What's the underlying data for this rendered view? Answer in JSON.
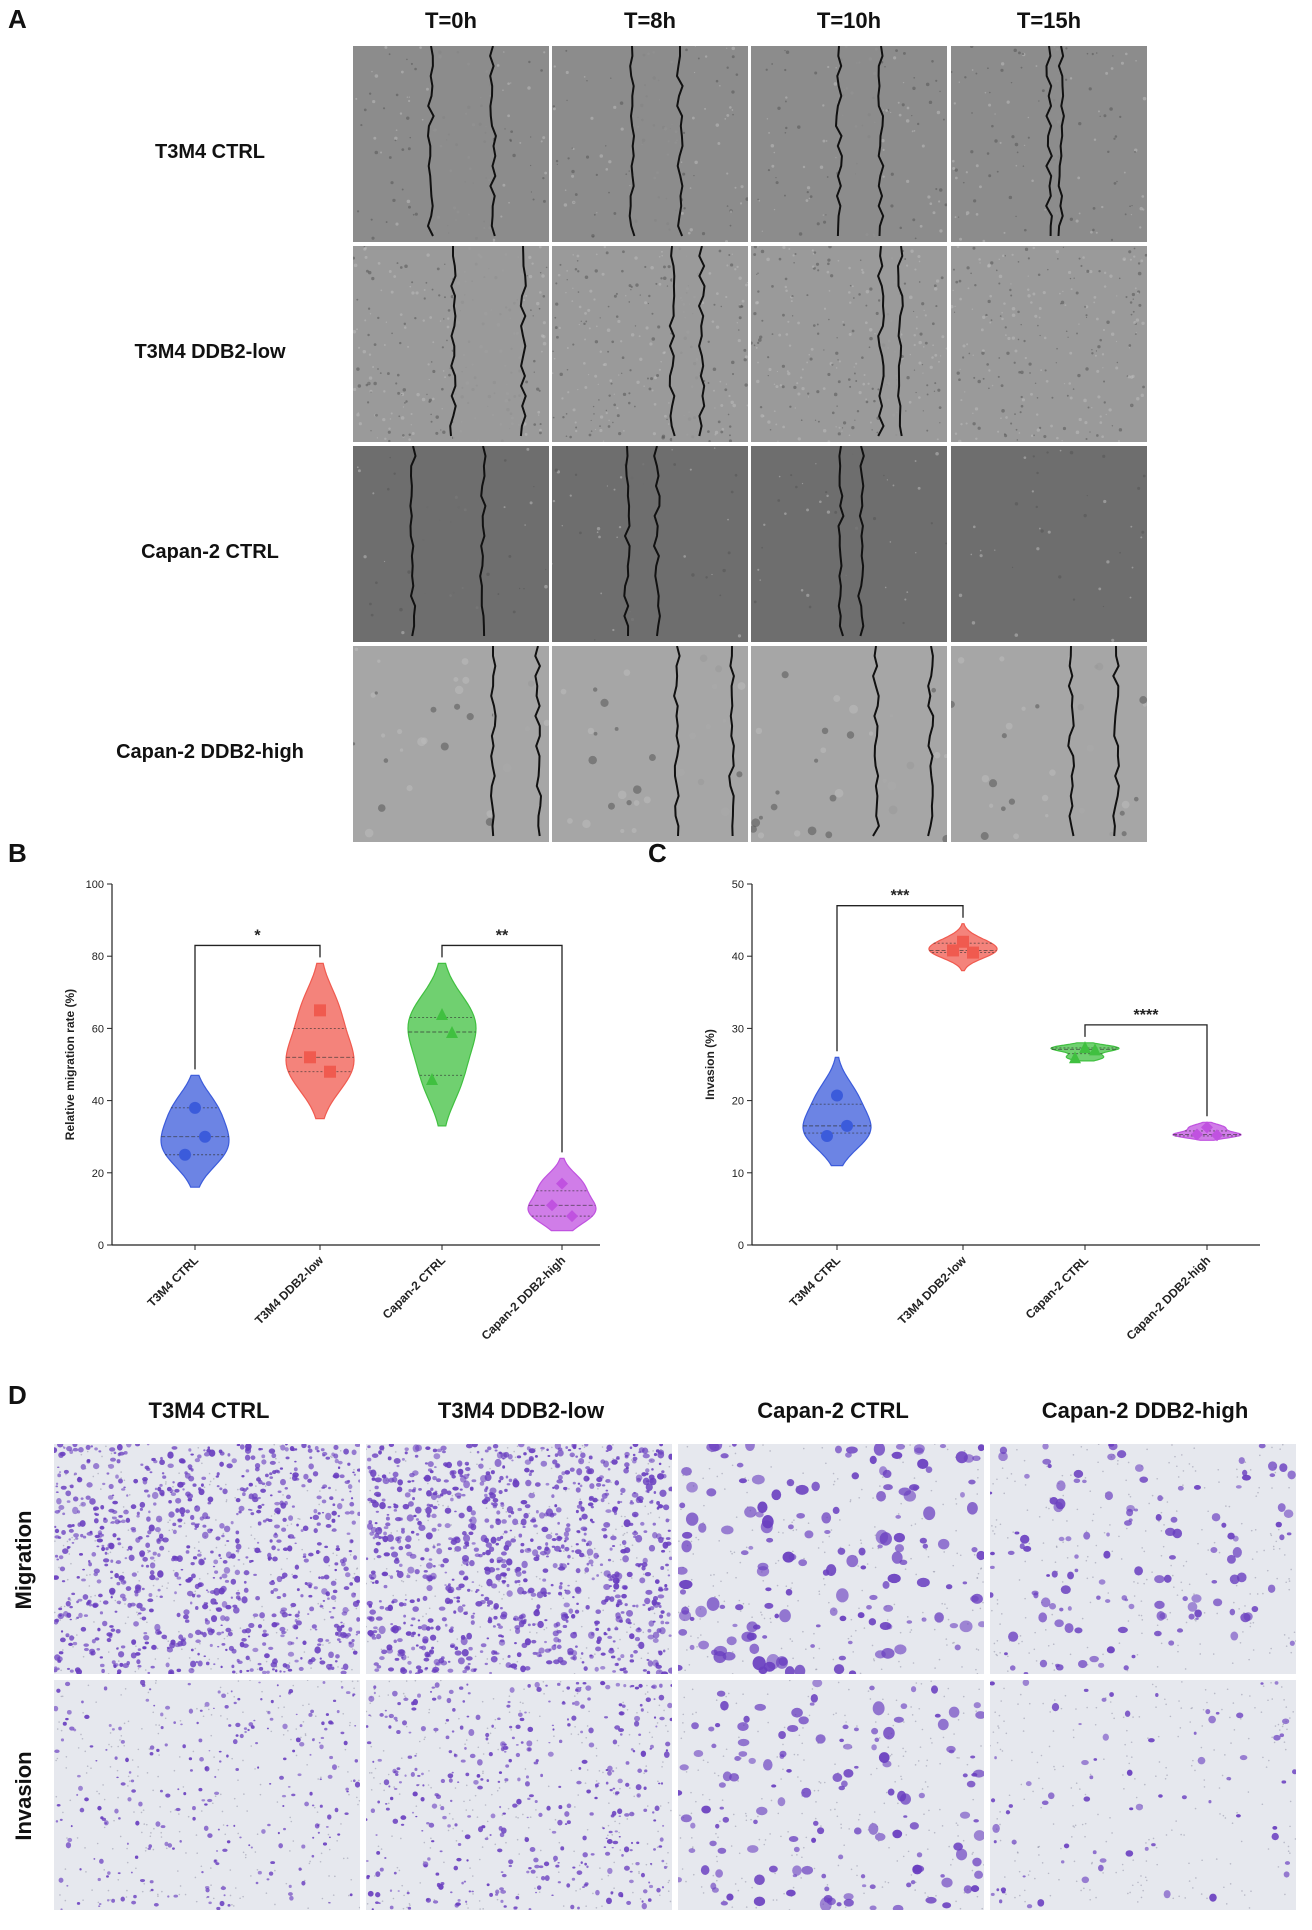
{
  "panelA": {
    "letter": "A",
    "times": [
      "T=0h",
      "T=8h",
      "T=10h",
      "T=15h"
    ],
    "rows": [
      {
        "label": "T3M4 CTRL",
        "tone": "#8c8c8c",
        "texture": "fine"
      },
      {
        "label": "T3M4 DDB2-low",
        "tone": "#9a9a9a",
        "texture": "grainy"
      },
      {
        "label": "Capan-2 CTRL",
        "tone": "#6e6e6e",
        "texture": "smooth"
      },
      {
        "label": "Capan-2 DDB2-high",
        "tone": "#a6a6a6",
        "texture": "spotty"
      }
    ],
    "gap_closed": [
      [
        false,
        false,
        false,
        false
      ],
      [
        false,
        false,
        false,
        true
      ],
      [
        false,
        false,
        false,
        true
      ],
      [
        false,
        false,
        false,
        false
      ]
    ]
  },
  "panelB": {
    "letter": "B"
  },
  "panelC": {
    "letter": "C"
  },
  "chart_data": [
    {
      "type": "violin",
      "ylabel": "Relative migration rate (%)",
      "xlabel": "",
      "ylim": [
        0,
        100
      ],
      "yticks": [
        0,
        20,
        40,
        60,
        80,
        100
      ],
      "categories": [
        "T3M4 CTRL",
        "T3M4 DDB2-low",
        "Capan-2 CTRL",
        "Capan-2 DDB2-high"
      ],
      "colors": [
        "#3b5bdb",
        "#f05a4f",
        "#40c040",
        "#c052e0"
      ],
      "markers": [
        "circle",
        "square",
        "triangle",
        "diamond"
      ],
      "points": [
        [
          38,
          30,
          25
        ],
        [
          65,
          52,
          48
        ],
        [
          64,
          59,
          46
        ],
        [
          17,
          11,
          8
        ]
      ],
      "violin_range": [
        [
          16,
          47
        ],
        [
          35,
          78
        ],
        [
          33,
          78
        ],
        [
          4,
          24
        ]
      ],
      "median": [
        30,
        52,
        59,
        11
      ],
      "quartiles": [
        [
          25,
          38
        ],
        [
          48,
          60
        ],
        [
          47,
          63
        ],
        [
          8,
          15
        ]
      ],
      "significance": [
        {
          "from": 0,
          "to": 1,
          "label": "*"
        },
        {
          "from": 2,
          "to": 3,
          "label": "**"
        }
      ]
    },
    {
      "type": "violin",
      "ylabel": "Invasion (%)",
      "xlabel": "",
      "ylim": [
        0,
        50
      ],
      "yticks": [
        0,
        10,
        20,
        30,
        40,
        50
      ],
      "categories": [
        "T3M4 CTRL",
        "T3M4 DDB2-low",
        "Capan-2 CTRL",
        "Capan-2 DDB2-high"
      ],
      "colors": [
        "#3b5bdb",
        "#f05a4f",
        "#40c040",
        "#c052e0"
      ],
      "markers": [
        "circle",
        "square",
        "triangle",
        "diamond"
      ],
      "points": [
        [
          20.7,
          16.5,
          15.1
        ],
        [
          42.0,
          40.8,
          40.5
        ],
        [
          27.4,
          27.1,
          26.0
        ],
        [
          16.3,
          15.3,
          15.2
        ]
      ],
      "violin_range": [
        [
          11,
          26
        ],
        [
          38,
          44.5
        ],
        [
          25.5,
          28
        ],
        [
          14.5,
          17
        ]
      ],
      "median": [
        16.5,
        40.8,
        27.1,
        15.3
      ],
      "quartiles": [
        [
          15.5,
          19.5
        ],
        [
          40.5,
          41.8
        ],
        [
          26.5,
          27.3
        ],
        [
          15.1,
          15.8
        ]
      ],
      "significance": [
        {
          "from": 0,
          "to": 1,
          "label": "***"
        },
        {
          "from": 2,
          "to": 3,
          "label": "****"
        }
      ]
    }
  ],
  "panelD": {
    "letter": "D",
    "columns": [
      "T3M4 CTRL",
      "T3M4 DDB2-low",
      "Capan-2 CTRL",
      "Capan-2 DDB2-high"
    ],
    "rows": [
      "Migration",
      "Invasion"
    ],
    "stain_color": "#6a3fc0",
    "background": "#e6e8ee"
  }
}
